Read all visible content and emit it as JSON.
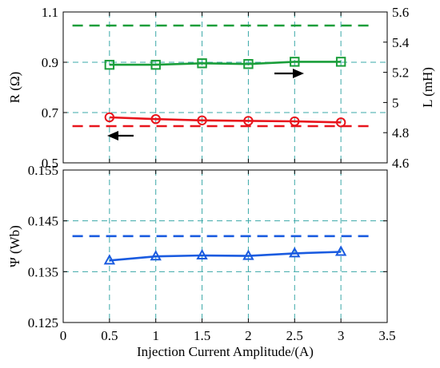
{
  "chart_data": [
    {
      "type": "line",
      "panel": "top",
      "xlim": [
        0,
        3.5
      ],
      "x_ticks": [
        "0",
        "0.5",
        "1",
        "1.5",
        "2",
        "2.5",
        "3",
        "3.5"
      ],
      "left_axis": {
        "label": "R (Ω)",
        "ylim": [
          0.5,
          1.1
        ],
        "ticks": [
          "0.5",
          "0.7",
          "0.9",
          "1.1"
        ]
      },
      "right_axis": {
        "label": "L (mH)",
        "ylim": [
          4.6,
          5.6
        ],
        "ticks": [
          "4.6",
          "4.8",
          "5",
          "5.2",
          "5.4",
          "5.6"
        ]
      },
      "grid": true,
      "series": [
        {
          "axis": "right",
          "marker": "square",
          "color": "#1a9e3a",
          "x": [
            0.5,
            1,
            1.5,
            2,
            2.5,
            3
          ],
          "values": [
            5.25,
            5.25,
            5.26,
            5.255,
            5.27,
            5.27
          ]
        },
        {
          "axis": "right",
          "style": "dashed",
          "color": "#1a9e3a",
          "x": [
            0.1,
            3.35
          ],
          "values": [
            5.51,
            5.51
          ]
        },
        {
          "axis": "left",
          "marker": "circle",
          "color": "#e8141c",
          "x": [
            0.5,
            1,
            1.5,
            2,
            2.5,
            3
          ],
          "values": [
            0.681,
            0.674,
            0.669,
            0.667,
            0.665,
            0.661
          ]
        },
        {
          "axis": "left",
          "style": "dashed",
          "color": "#e8141c",
          "x": [
            0.1,
            3.35
          ],
          "values": [
            0.646,
            0.646
          ]
        }
      ]
    },
    {
      "type": "line",
      "panel": "bottom",
      "xlim": [
        0,
        3.5
      ],
      "x_ticks": [
        "0",
        "0.5",
        "1",
        "1.5",
        "2",
        "2.5",
        "3",
        "3.5"
      ],
      "xlabel": "Injection Current Amplitude/(A)",
      "left_axis": {
        "label": "Ψ (Wb)",
        "ylim": [
          0.125,
          0.155
        ],
        "ticks": [
          "0.125",
          "0.135",
          "0.145",
          "0.155"
        ]
      },
      "grid": true,
      "series": [
        {
          "marker": "triangle",
          "color": "#1a5be0",
          "x": [
            0.5,
            1,
            1.5,
            2,
            2.5,
            3
          ],
          "values": [
            0.1372,
            0.138,
            0.1382,
            0.1381,
            0.1386,
            0.1389
          ]
        },
        {
          "style": "dashed",
          "color": "#1a5be0",
          "x": [
            0.1,
            3.35
          ],
          "values": [
            0.142,
            0.142
          ]
        }
      ]
    }
  ]
}
